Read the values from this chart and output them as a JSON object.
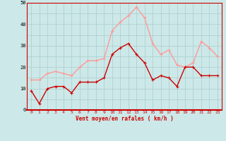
{
  "x": [
    0,
    1,
    2,
    3,
    4,
    5,
    6,
    7,
    8,
    9,
    10,
    11,
    12,
    13,
    14,
    15,
    16,
    17,
    18,
    19,
    20,
    21,
    22,
    23
  ],
  "wind_avg": [
    9,
    3,
    10,
    11,
    11,
    8,
    13,
    13,
    13,
    15,
    26,
    29,
    31,
    26,
    22,
    14,
    16,
    15,
    11,
    20,
    20,
    16,
    16,
    16
  ],
  "wind_gust": [
    14,
    14,
    17,
    18,
    17,
    16,
    20,
    23,
    23,
    24,
    37,
    41,
    44,
    48,
    43,
    31,
    26,
    28,
    21,
    20,
    22,
    32,
    29,
    25
  ],
  "color_avg": "#cc0000",
  "color_gust": "#ff9999",
  "bg_color": "#cce8e8",
  "grid_color": "#aacccc",
  "xlabel": "Vent moyen/en rafales ( km/h )",
  "xlabel_color": "#cc0000",
  "ylim": [
    0,
    50
  ],
  "yticks": [
    0,
    5,
    10,
    15,
    20,
    25,
    30,
    35,
    40,
    45,
    50
  ],
  "marker_size": 2.5,
  "line_width": 1.0
}
